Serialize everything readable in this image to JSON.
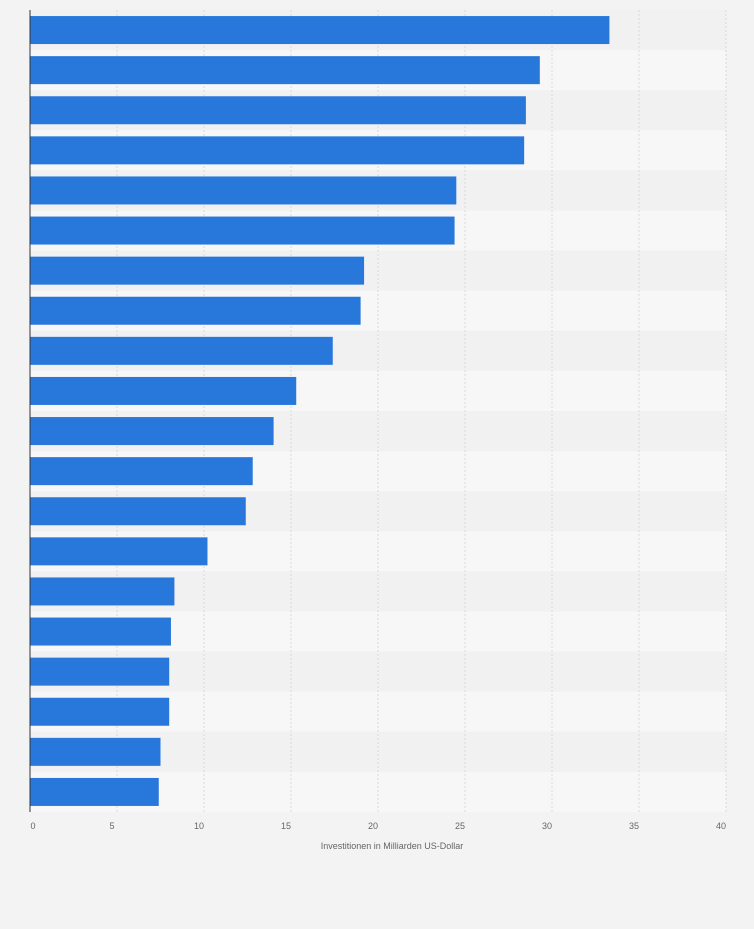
{
  "chart_data": {
    "type": "bar",
    "orientation": "horizontal",
    "title": "",
    "xlabel": "Investitionen in Milliarden US-Dollar",
    "ylabel": "",
    "xlim": [
      0,
      40
    ],
    "xticks": [
      "0",
      "5",
      "10",
      "15",
      "20",
      "25",
      "30",
      "35",
      "40"
    ],
    "grid": true,
    "categories": [
      "",
      "",
      "",
      "",
      "",
      "",
      "",
      "",
      "",
      "",
      "",
      "",
      "",
      "",
      "",
      "",
      "",
      "",
      "",
      ""
    ],
    "values": [
      33.3,
      29.3,
      28.5,
      28.4,
      24.5,
      24.4,
      19.2,
      19.0,
      17.4,
      15.3,
      14.0,
      12.8,
      12.4,
      10.2,
      8.3,
      8.1,
      8.0,
      8.0,
      7.5,
      7.4
    ],
    "colors": {
      "bar": "#2878dc",
      "band_dark": "#f1f1f1",
      "band_light": "#f7f7f7",
      "grid": "#d9d9d9",
      "axis": "#333333",
      "outer": "#f3f3f3"
    }
  }
}
